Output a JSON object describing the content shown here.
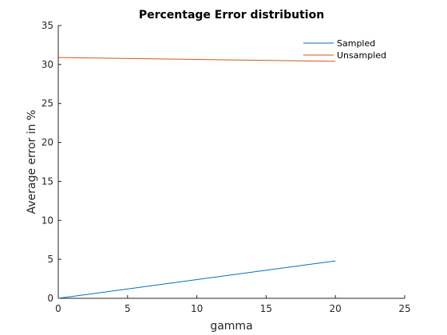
{
  "chart_data": {
    "type": "line",
    "title": "Percentage Error distribution",
    "xlabel": "gamma",
    "ylabel": "Average error in %",
    "xlim": [
      0,
      25
    ],
    "ylim": [
      0,
      35
    ],
    "xticks": [
      0,
      5,
      10,
      15,
      20,
      25
    ],
    "yticks": [
      0,
      5,
      10,
      15,
      20,
      25,
      30,
      35
    ],
    "grid": false,
    "legend_position": "top-right",
    "series": [
      {
        "name": "Sampled",
        "color": "#0072BD",
        "x": [
          0,
          20
        ],
        "y": [
          0,
          4.8
        ]
      },
      {
        "name": "Unsampled",
        "color": "#D95319",
        "x": [
          0,
          20
        ],
        "y": [
          30.9,
          30.4
        ]
      }
    ]
  }
}
